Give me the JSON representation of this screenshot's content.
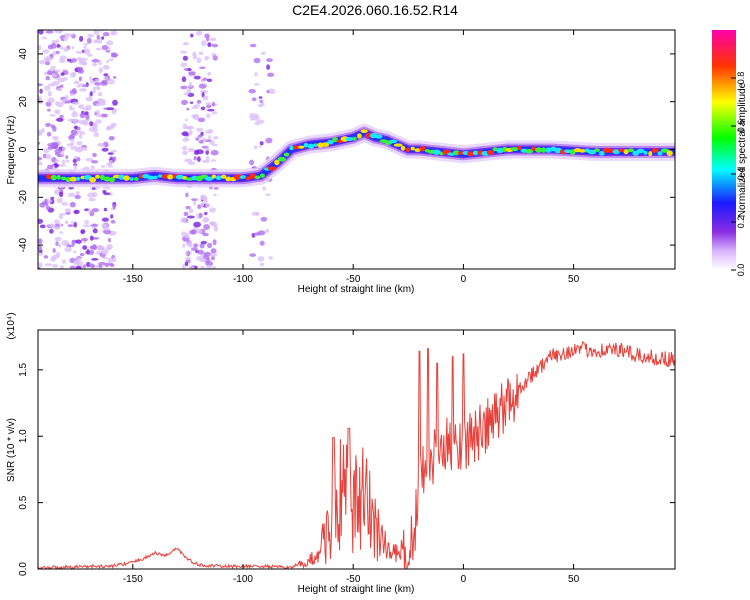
{
  "title": "C2E4.2026.060.16.52.R14",
  "colors": {
    "trace": "#e8403a",
    "axis": "#000000"
  },
  "chart_data": [
    {
      "type": "heatmap",
      "name": "spectrogram",
      "xlabel": "Height of straight line (km)",
      "ylabel": "Frequency (Hz)",
      "xlim": [
        -193,
        96
      ],
      "ylim": [
        -50,
        50
      ],
      "xticks": [
        -150,
        -100,
        -50,
        0,
        50
      ],
      "yticks": [
        -40,
        -20,
        0,
        20,
        40
      ],
      "ridge": {
        "x": [
          -193,
          -160,
          -150,
          -140,
          -130,
          -120,
          -110,
          -100,
          -92,
          -85,
          -78,
          -70,
          -60,
          -50,
          -45,
          -40,
          -35,
          -30,
          -25,
          -20,
          -10,
          0,
          10,
          20,
          40,
          60,
          80,
          96
        ],
        "freq": [
          -12,
          -12,
          -12,
          -11,
          -12,
          -12,
          -12,
          -12,
          -11,
          -6,
          0,
          2,
          3,
          5,
          7,
          5,
          4,
          2,
          0,
          0,
          -1,
          -2,
          -1,
          0,
          0,
          -1,
          -1,
          -1
        ]
      },
      "colorbar": {
        "label": "Normalized spectral amplitude",
        "range": [
          0,
          1
        ],
        "ticks": [
          "0.0",
          "0.2",
          "0.4",
          "0.6",
          "0.8"
        ]
      }
    },
    {
      "type": "line",
      "name": "snr",
      "xlabel": "Height of straight line (km)",
      "ylabel": "SNR (10 * v/v)",
      "exponent_label": "(x10⁴)",
      "xlim": [
        -193,
        96
      ],
      "ylim": [
        0,
        1.8
      ],
      "xticks": [
        -150,
        -100,
        -50,
        0,
        50
      ],
      "yticks": [
        "0.0",
        "0.5",
        "1.0",
        "1.5"
      ],
      "series": [
        {
          "name": "SNR",
          "x": [
            -193,
            -170,
            -160,
            -150,
            -145,
            -140,
            -135,
            -130,
            -125,
            -120,
            -110,
            -100,
            -90,
            -80,
            -75,
            -70,
            -65,
            -60,
            -55,
            -50,
            -45,
            -40,
            -35,
            -30,
            -25,
            -22,
            -20,
            -15,
            -10,
            -5,
            0,
            5,
            10,
            20,
            30,
            40,
            50,
            60,
            70,
            80,
            96
          ],
          "y": [
            0.01,
            0.02,
            0.02,
            0.05,
            0.08,
            0.12,
            0.1,
            0.16,
            0.07,
            0.03,
            0.02,
            0.02,
            0.02,
            0.01,
            0.03,
            0.05,
            0.15,
            0.35,
            0.55,
            0.45,
            0.5,
            0.35,
            0.15,
            0.1,
            0.08,
            0.3,
            0.7,
            0.8,
            0.9,
            0.95,
            0.95,
            1.0,
            1.05,
            1.25,
            1.45,
            1.6,
            1.65,
            1.65,
            1.65,
            1.6,
            1.58
          ]
        }
      ],
      "spikes": [
        {
          "x": -59,
          "y": 0.99
        },
        {
          "x": -52,
          "y": 1.06
        },
        {
          "x": -20,
          "y": 1.64
        },
        {
          "x": -16,
          "y": 1.66
        },
        {
          "x": -12,
          "y": 1.55
        },
        {
          "x": -5,
          "y": 1.6
        },
        {
          "x": 0,
          "y": 1.62
        }
      ]
    }
  ]
}
